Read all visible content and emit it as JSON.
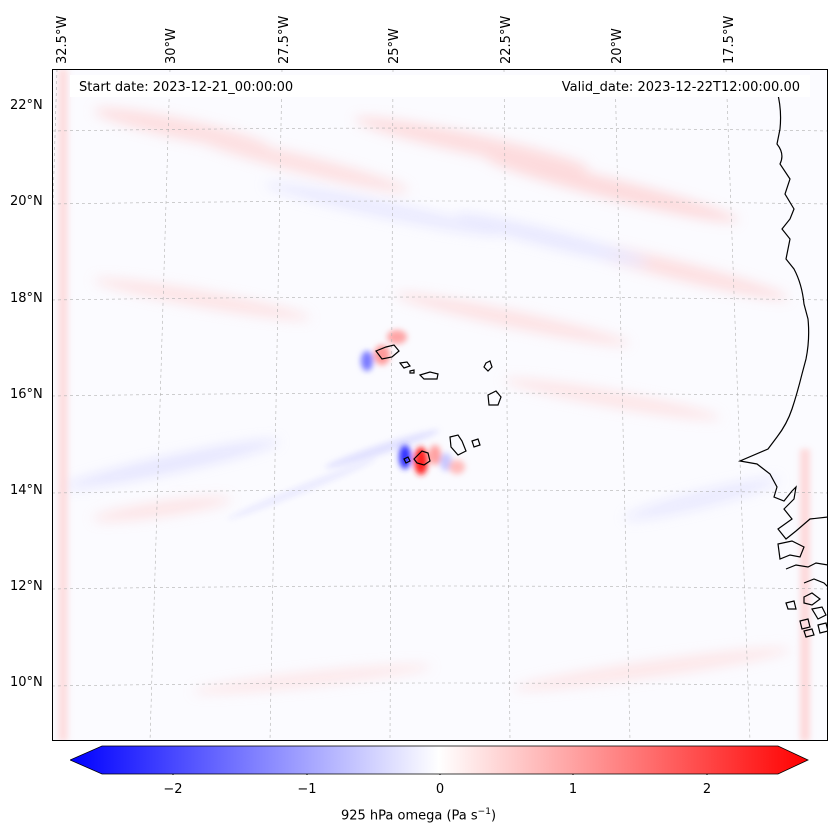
{
  "map": {
    "start_date_label": "Start date: 2023-12-21_00:00:00",
    "valid_date_label": "Valid_date: 2023-12-22T12:00:00.00",
    "lon_labels": [
      "32.5°W",
      "30°W",
      "27.5°W",
      "25°W",
      "22.5°W",
      "20°W",
      "17.5°W"
    ],
    "lat_labels": [
      "22°N",
      "20°N",
      "18°N",
      "16°N",
      "14°N",
      "12°N",
      "10°N"
    ],
    "coastline_color": "#000000",
    "gridline_color": "#b0b0b0"
  },
  "colorbar": {
    "ticks": [
      "−2",
      "−1",
      "0",
      "1",
      "2"
    ],
    "title_main": "925 hPa omega (Pa s",
    "title_sup": "−1",
    "title_close": ")",
    "min_color": "#0000ff",
    "mid_color": "#ffffff",
    "max_color": "#ff0000"
  }
}
